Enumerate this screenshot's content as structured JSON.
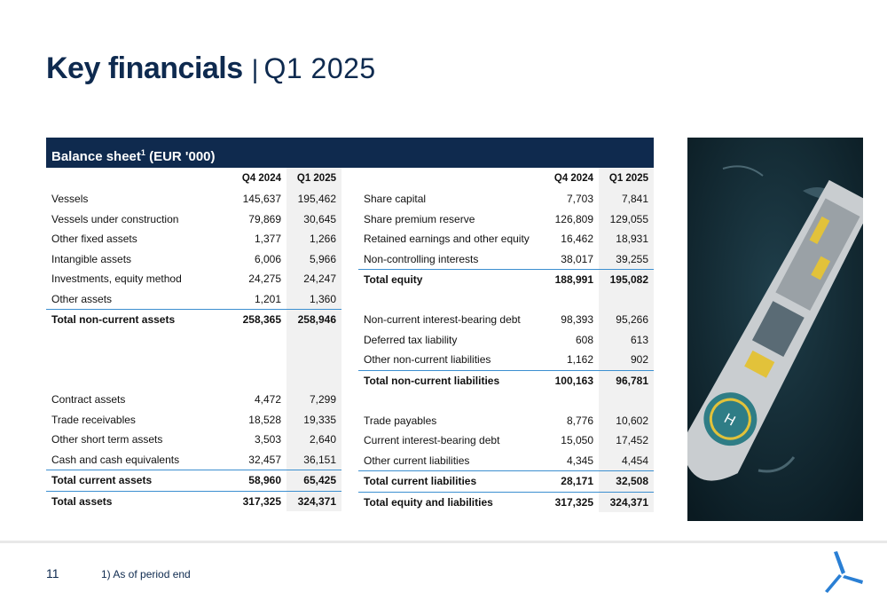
{
  "title": {
    "main": "Key financials",
    "separator": "|",
    "period": "Q1 2025"
  },
  "section_header": {
    "label": "Balance sheet",
    "footnote_mark": "1",
    "unit": "(EUR '000)"
  },
  "left_table": {
    "headers": [
      "",
      "Q4 2024",
      "Q1 2025"
    ],
    "rows": [
      [
        "Vessels",
        "145,637",
        "195,462"
      ],
      [
        "Vessels under construction",
        "79,869",
        "30,645"
      ],
      [
        "Other fixed assets",
        "1,377",
        "1,266"
      ],
      [
        "Intangible assets",
        "6,006",
        "5,966"
      ],
      [
        "Investments, equity method",
        "24,275",
        "24,247"
      ],
      [
        "Other assets",
        "1,201",
        "1,360"
      ],
      [
        "Total non-current assets",
        "258,365",
        "258,946"
      ],
      [
        "",
        "",
        ""
      ],
      [
        "",
        "",
        ""
      ],
      [
        "",
        "",
        ""
      ],
      [
        "Contract assets",
        "4,472",
        "7,299"
      ],
      [
        "Trade receivables",
        "18,528",
        "19,335"
      ],
      [
        "Other short term assets",
        "3,503",
        "2,640"
      ],
      [
        "Cash and cash equivalents",
        "32,457",
        "36,151"
      ],
      [
        "Total current assets",
        "58,960",
        "65,425"
      ],
      [
        "Total assets",
        "317,325",
        "324,371"
      ]
    ]
  },
  "right_table": {
    "headers": [
      "",
      "Q4 2024",
      "Q1 2025"
    ],
    "rows": [
      [
        "Share capital",
        "7,703",
        "7,841"
      ],
      [
        "Share premium reserve",
        "126,809",
        "129,055"
      ],
      [
        "Retained earnings and other equity",
        "16,462",
        "18,931"
      ],
      [
        "Non-controlling interests",
        "38,017",
        "39,255"
      ],
      [
        "Total equity",
        "188,991",
        "195,082"
      ],
      [
        "",
        "",
        ""
      ],
      [
        "Non-current interest-bearing debt",
        "98,393",
        "95,266"
      ],
      [
        "Deferred tax liability",
        "608",
        "613"
      ],
      [
        "Other non-current liabilities",
        "1,162",
        "902"
      ],
      [
        "Total non-current liabilities",
        "100,163",
        "96,781"
      ],
      [
        "",
        "",
        ""
      ],
      [
        "Trade payables",
        "8,776",
        "10,602"
      ],
      [
        "Current interest-bearing debt",
        "15,050",
        "17,452"
      ],
      [
        "Other current liabilities",
        "4,345",
        "4,454"
      ],
      [
        "Total current liabilities",
        "28,171",
        "32,508"
      ],
      [
        "Total equity and liabilities",
        "317,325",
        "324,371"
      ]
    ]
  },
  "footer": {
    "page_number": "11",
    "footnote": "1) As of period end"
  },
  "colors": {
    "navy": "#0f2a4e",
    "accent_line": "#3c8fd0",
    "shade": "#f1f1f1",
    "logo_blue": "#2a7fd4"
  },
  "icons": {
    "logo": "wind-turbine-logo-icon",
    "photo": "vessel-aerial-photo"
  }
}
